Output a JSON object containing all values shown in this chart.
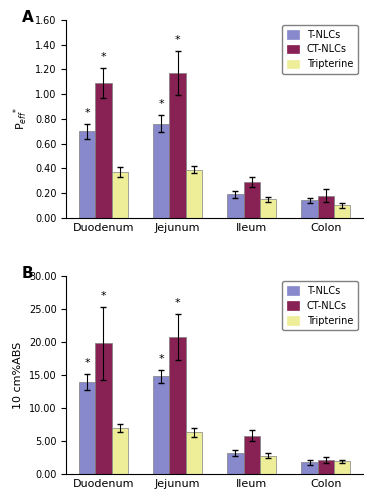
{
  "panel_A": {
    "title": "A",
    "ylabel": "P$_{eff}$$^{*}$",
    "ylim": [
      0,
      1.6
    ],
    "yticks": [
      0.0,
      0.2,
      0.4,
      0.6,
      0.8,
      1.0,
      1.2,
      1.4,
      1.6
    ],
    "categories": [
      "Duodenum",
      "Jejunum",
      "Ileum",
      "Colon"
    ],
    "T_NLCs": [
      0.7,
      0.76,
      0.19,
      0.14
    ],
    "CT_NLCs": [
      1.09,
      1.17,
      0.29,
      0.18
    ],
    "Tripterine": [
      0.37,
      0.39,
      0.15,
      0.1
    ],
    "T_NLCs_err": [
      0.06,
      0.07,
      0.03,
      0.02
    ],
    "CT_NLCs_err": [
      0.12,
      0.18,
      0.04,
      0.05
    ],
    "Tripterine_err": [
      0.04,
      0.03,
      0.02,
      0.02
    ],
    "star_T": [
      true,
      true,
      false,
      false
    ],
    "star_CT": [
      true,
      true,
      false,
      false
    ]
  },
  "panel_B": {
    "title": "B",
    "ylabel": "10 cm%ABS",
    "ylim": [
      0,
      30.0
    ],
    "yticks": [
      0.0,
      5.0,
      10.0,
      15.0,
      20.0,
      25.0,
      30.0
    ],
    "categories": [
      "Duodenum",
      "Jejunum",
      "Ileum",
      "Colon"
    ],
    "T_NLCs": [
      14.0,
      14.8,
      3.2,
      1.8
    ],
    "CT_NLCs": [
      19.8,
      20.8,
      5.8,
      2.1
    ],
    "Tripterine": [
      7.0,
      6.3,
      2.8,
      1.9
    ],
    "T_NLCs_err": [
      1.2,
      1.0,
      0.5,
      0.4
    ],
    "CT_NLCs_err": [
      5.5,
      3.5,
      0.8,
      0.5
    ],
    "Tripterine_err": [
      0.6,
      0.7,
      0.4,
      0.3
    ],
    "star_T": [
      true,
      true,
      false,
      false
    ],
    "star_CT": [
      true,
      true,
      false,
      false
    ]
  },
  "colors": {
    "T_NLCs": "#8888cc",
    "CT_NLCs": "#882255",
    "Tripterine": "#eeee99"
  },
  "legend_labels": [
    "T-NLCs",
    "CT-NLCs",
    "Tripterine"
  ],
  "bar_width": 0.22
}
